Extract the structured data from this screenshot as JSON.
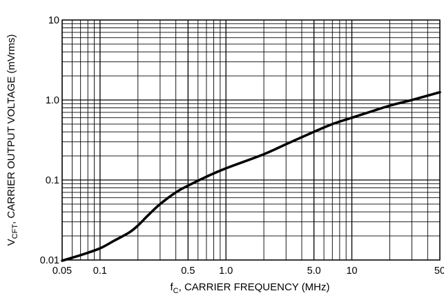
{
  "chart_data": {
    "type": "line",
    "title": "",
    "xlabel": {
      "main": "f",
      "sub": "C",
      "rest": ", CARRIER FREQUENCY (MHz)"
    },
    "ylabel": {
      "main": "V",
      "sub": "CFT",
      "rest": ", CARRIER OUTPUT VOLTAGE (mVrms)"
    },
    "x_scale": "log",
    "y_scale": "log",
    "xlim": [
      0.05,
      50
    ],
    "ylim": [
      0.01,
      10
    ],
    "grid": true,
    "x_ticks": [
      {
        "value": 0.05,
        "label": "0.05"
      },
      {
        "value": 0.1,
        "label": "0.1"
      },
      {
        "value": 0.5,
        "label": "0.5"
      },
      {
        "value": 1.0,
        "label": "1.0"
      },
      {
        "value": 5.0,
        "label": "5.0"
      },
      {
        "value": 10,
        "label": "10"
      },
      {
        "value": 50,
        "label": "50"
      }
    ],
    "y_ticks": [
      {
        "value": 0.01,
        "label": "0.01"
      },
      {
        "value": 0.1,
        "label": "0.1"
      },
      {
        "value": 1.0,
        "label": "1.0"
      },
      {
        "value": 10,
        "label": "10"
      }
    ],
    "series": [
      {
        "x": [
          0.05,
          0.07,
          0.1,
          0.13,
          0.17,
          0.2,
          0.24,
          0.3,
          0.4,
          0.5,
          0.7,
          1.0,
          2.0,
          3.0,
          5.0,
          7.0,
          10,
          20,
          30,
          50
        ],
        "y": [
          0.0098,
          0.0115,
          0.014,
          0.0175,
          0.022,
          0.027,
          0.036,
          0.05,
          0.07,
          0.085,
          0.11,
          0.14,
          0.21,
          0.28,
          0.4,
          0.5,
          0.6,
          0.85,
          1.0,
          1.25
        ]
      }
    ]
  }
}
